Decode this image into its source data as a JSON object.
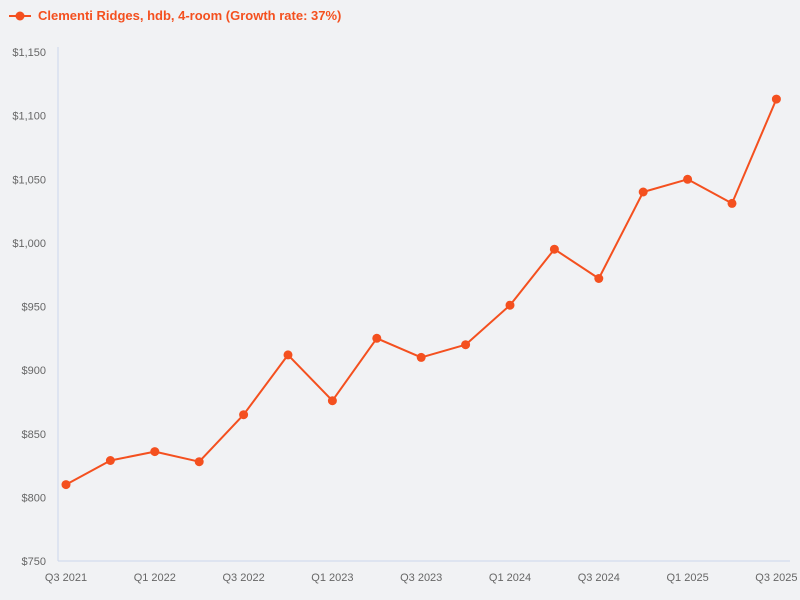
{
  "chart_data": {
    "type": "line",
    "title": "Clementi Ridges, hdb, 4-room (Growth rate: 37%)",
    "legend_label": "Clementi Ridges, hdb, 4-room (Growth rate: 37%)",
    "legend_position": "top-left",
    "categories": [
      "Q3 2021",
      "Q4 2021",
      "Q1 2022",
      "Q2 2022",
      "Q3 2022",
      "Q4 2022",
      "Q1 2023",
      "Q2 2023",
      "Q3 2023",
      "Q4 2023",
      "Q1 2024",
      "Q2 2024",
      "Q3 2024",
      "Q4 2024",
      "Q1 2025",
      "Q2 2025",
      "Q3 2025"
    ],
    "series": [
      {
        "name": "Clementi Ridges, hdb, 4-room",
        "growth_rate": "37%",
        "values": [
          810,
          829,
          836,
          828,
          865,
          912,
          876,
          925,
          910,
          920,
          951,
          995,
          972,
          1040,
          1050,
          1031,
          1113
        ]
      }
    ],
    "x_tick_labels": [
      "Q3 2021",
      "Q1 2022",
      "Q3 2022",
      "Q1 2023",
      "Q3 2023",
      "Q1 2024",
      "Q3 2024",
      "Q1 2025",
      "Q3 2025"
    ],
    "x_tick_interval": 2,
    "ylim": [
      750,
      1150
    ],
    "y_tick_step": 50,
    "y_tick_labels": [
      "$750",
      "$800",
      "$850",
      "$900",
      "$950",
      "$1,000",
      "$1,050",
      "$1,100",
      "$1,150"
    ],
    "y_value_prefix": "$",
    "grid": false,
    "colors": {
      "series": "#f4501f",
      "axis_line": "#ccd6eb",
      "tick_label": "#666666",
      "background": "#f1f2f4"
    }
  }
}
